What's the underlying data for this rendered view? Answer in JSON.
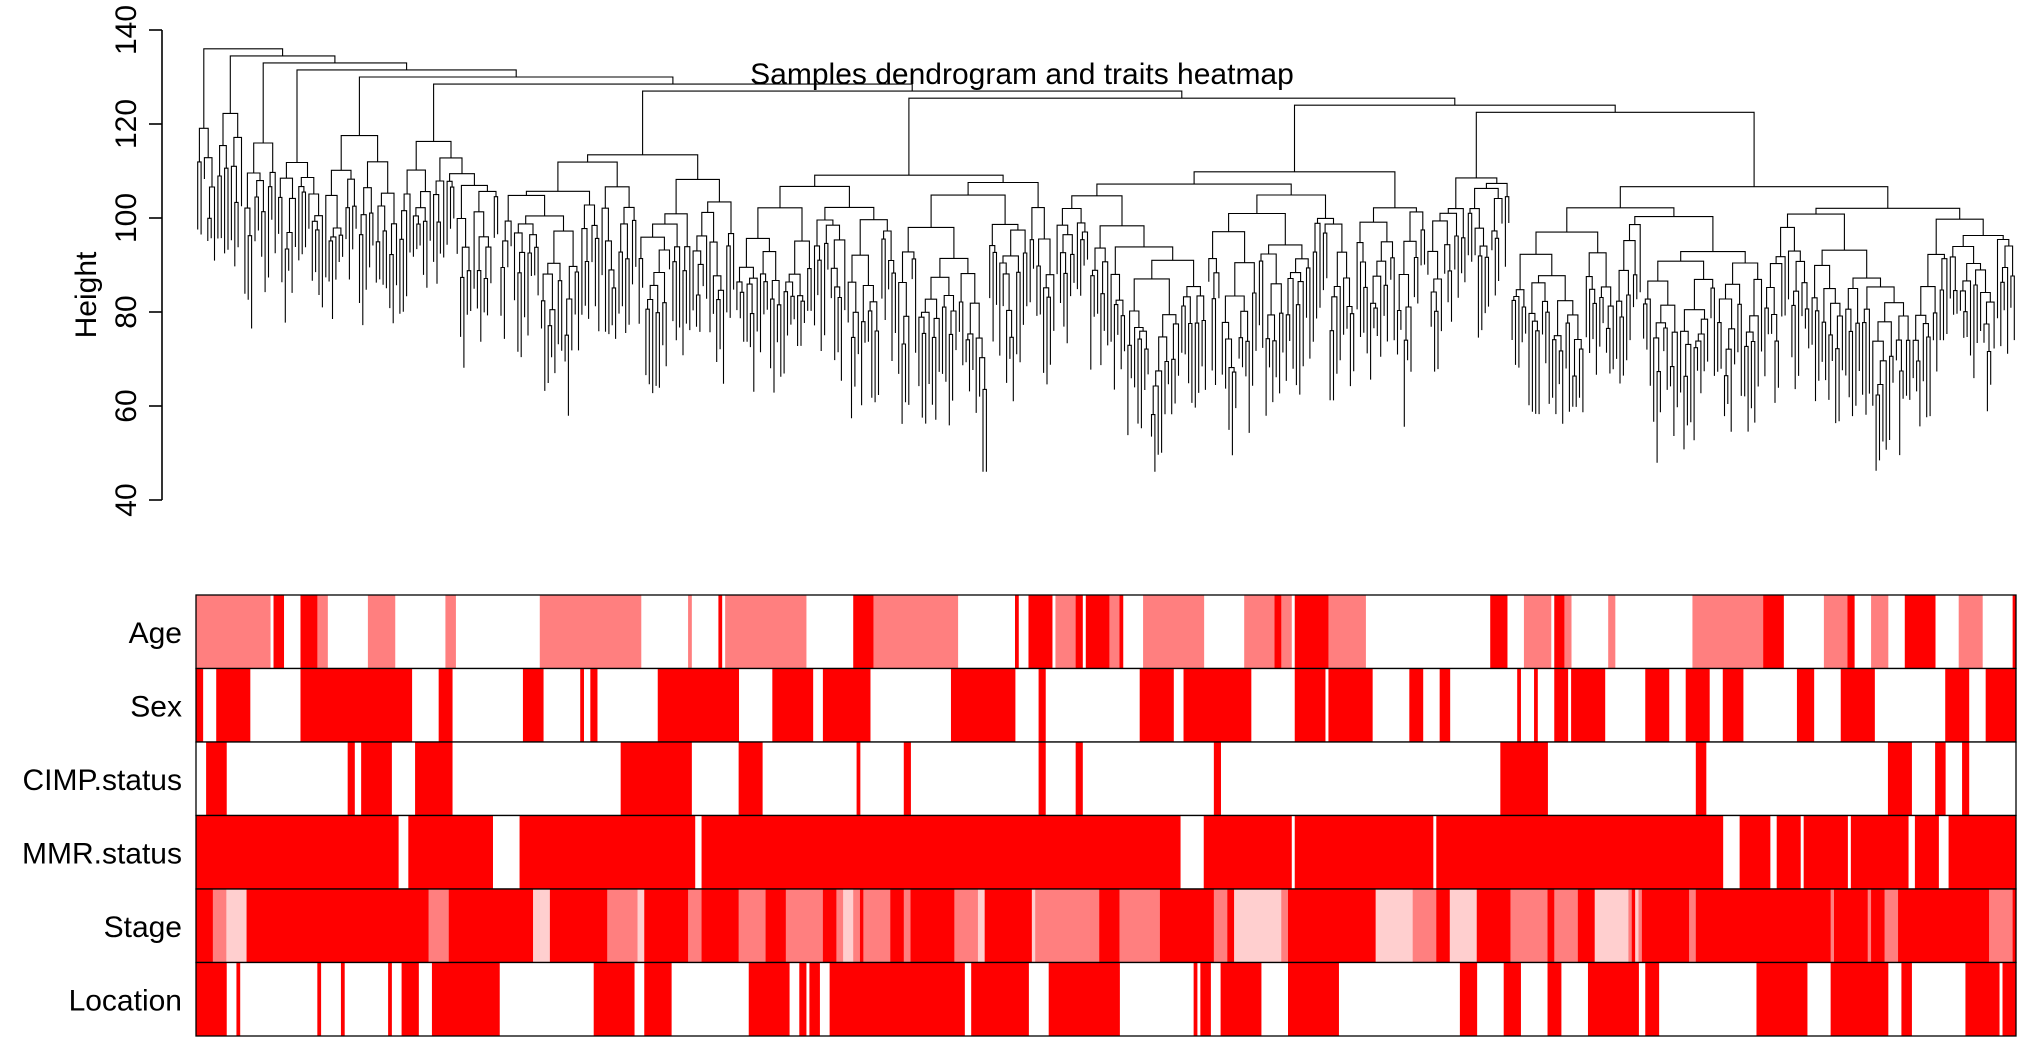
{
  "chart_data": [
    {
      "type": "dendrogram",
      "title": "Samples dendrogram and traits heatmap",
      "ylabel": "Height",
      "xlabel": "",
      "ylim": [
        40,
        140
      ],
      "yticks": [
        "40",
        "60",
        "80",
        "100",
        "120",
        "140"
      ],
      "leaf_count": 540,
      "grid": false
    },
    {
      "type": "heatmap",
      "traits": [
        {
          "name": "Age",
          "colors": [
            "#ff7f7f",
            "#ff0000",
            "#ffffff"
          ],
          "density": 0.55,
          "dark_ratio": 0.65
        },
        {
          "name": "Sex",
          "colors": [
            "#ff0000",
            "#ffffff"
          ],
          "density": 0.55
        },
        {
          "name": "CIMP.status",
          "colors": [
            "#ff0000",
            "#ffffff"
          ],
          "density": 0.22
        },
        {
          "name": "MMR.status",
          "colors": [
            "#ff0000",
            "#ffffff"
          ],
          "density": 0.85
        },
        {
          "name": "Stage",
          "colors": [
            "#ff0000",
            "#ff7f7f",
            "#ffcfcf"
          ],
          "density": 0.9,
          "dark_ratio": 0.6
        },
        {
          "name": "Location",
          "colors": [
            "#ff0000",
            "#ffffff"
          ],
          "density": 0.5
        }
      ],
      "legend": "none"
    }
  ]
}
